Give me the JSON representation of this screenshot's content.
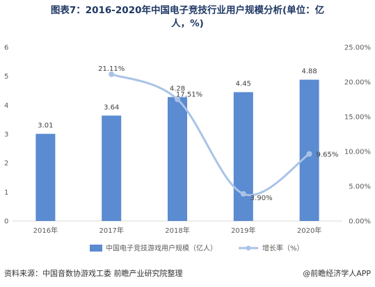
{
  "chart_data": {
    "type": "bar",
    "title_line1": "图表7：2016-2020年中国电子竞技行业用户规模分析(单位：亿",
    "title_line2": "人，%)",
    "categories": [
      "2016年",
      "2017年",
      "2018年",
      "2019年",
      "2020年"
    ],
    "series": [
      {
        "name": "中国电子竞技游戏用户规模（亿人）",
        "type": "bar",
        "axis": "left",
        "values": [
          3.01,
          3.64,
          4.28,
          4.45,
          4.88
        ],
        "labels": [
          "3.01",
          "3.64",
          "4.28",
          "4.45",
          "4.88"
        ],
        "color": "#5b8bd0"
      },
      {
        "name": "增长率（%）",
        "type": "line",
        "axis": "right",
        "values": [
          null,
          21.11,
          17.51,
          3.9,
          9.65
        ],
        "labels": [
          "",
          "21.11%",
          "17.51%",
          "3.90%",
          "9.65%"
        ],
        "color": "#a9c3e6"
      }
    ],
    "y_left": {
      "min": 0,
      "max": 6,
      "ticks": [
        "0",
        "1",
        "2",
        "3",
        "4",
        "5",
        "6"
      ]
    },
    "y_right": {
      "min": 0,
      "max": 25,
      "ticks": [
        "0.00%",
        "5.00%",
        "10.00%",
        "15.00%",
        "20.00%",
        "25.00%"
      ]
    },
    "grid": false,
    "legend_position": "bottom"
  },
  "footer": {
    "source": "资料来源：中国音数协游戏工委 前瞻产业研究院整理",
    "brand": "@前瞻经济学人APP"
  }
}
